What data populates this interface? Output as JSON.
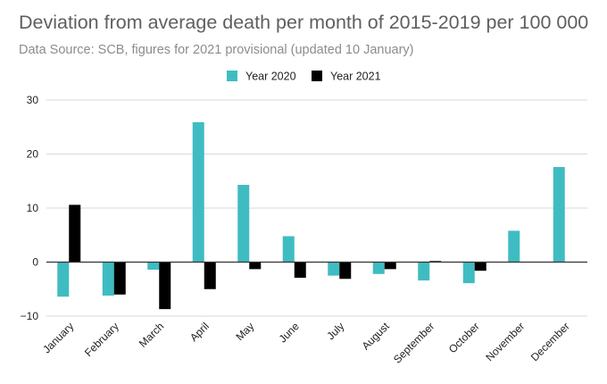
{
  "chart_data": {
    "type": "bar",
    "title": "Deviation from average death per month of 2015-2019 per 100 000",
    "subtitle": "Data Source: SCB, figures for 2021 provisional (updated 10 January)",
    "xlabel": "",
    "ylabel": "",
    "categories": [
      "January",
      "February",
      "March",
      "April",
      "May",
      "June",
      "July",
      "August",
      "September",
      "October",
      "November",
      "December"
    ],
    "series": [
      {
        "name": "Year 2020",
        "color": "#3fbcc2",
        "values": [
          -6.4,
          -6.2,
          -1.4,
          25.9,
          14.3,
          4.8,
          -2.5,
          -2.2,
          -3.4,
          -3.9,
          5.8,
          17.6
        ]
      },
      {
        "name": "Year 2021",
        "color": "#000000",
        "values": [
          10.6,
          -6.0,
          -8.7,
          -5.0,
          -1.3,
          -2.9,
          -3.1,
          -1.3,
          0.2,
          -1.6,
          null,
          null
        ]
      }
    ],
    "ylim": [
      -10,
      30
    ],
    "yticks": [
      30,
      20,
      10,
      0,
      -10
    ],
    "grid": true,
    "legend_position": "top-center"
  }
}
